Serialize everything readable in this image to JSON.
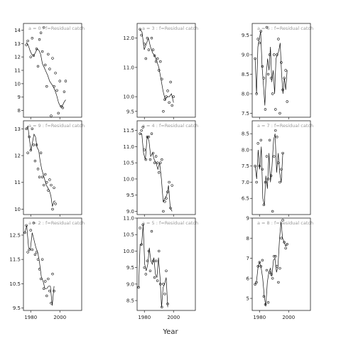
{
  "chart_data": {
    "type": "line",
    "xlabel": "Year",
    "ylabel": "",
    "grid": false,
    "xlim": [
      1975,
      2015
    ],
    "x_ticks": [
      1980,
      2000
    ],
    "panels": [
      {
        "title": "a = 0  :  f=Residual catch",
        "ylim": [
          7.5,
          14.5
        ],
        "yticks": [
          8,
          9,
          10,
          11,
          12,
          13,
          14
        ],
        "fitted": [
          13.1,
          12.9,
          12.5,
          12.2,
          12.1,
          12.3,
          12.6,
          12.5,
          12.2,
          11.5,
          11.2,
          10.9,
          10.6,
          10.2,
          10.0,
          9.8,
          9.5,
          9.1,
          8.6,
          8.3,
          8.3,
          8.6,
          8.8
        ],
        "observed": [
          [
            1977,
            12.9
          ],
          [
            1978,
            13.2
          ],
          [
            1980,
            12.0
          ],
          [
            1981,
            13.4
          ],
          [
            1982,
            12.1
          ],
          [
            1984,
            12.6
          ],
          [
            1985,
            11.3
          ],
          [
            1986,
            13.3
          ],
          [
            1987,
            13.8
          ],
          [
            1988,
            12.4
          ],
          [
            1989,
            14.2
          ],
          [
            1990,
            11.4
          ],
          [
            1991,
            9.8
          ],
          [
            1992,
            12.2
          ],
          [
            1993,
            11.1
          ],
          [
            1994,
            7.6
          ],
          [
            1995,
            11.9
          ],
          [
            1996,
            9.8
          ],
          [
            1997,
            10.8
          ],
          [
            1998,
            9.5
          ],
          [
            1999,
            7.8
          ],
          [
            2000,
            10.2
          ],
          [
            2001,
            8.3
          ],
          [
            2002,
            8.2
          ],
          [
            2003,
            9.4
          ],
          [
            2004,
            10.2
          ]
        ]
      },
      {
        "title": "a = 3  :  f=Residual catch",
        "ylim": [
          9.3,
          12.5
        ],
        "yticks": [
          9.5,
          10.0,
          11.0,
          12.0
        ],
        "fitted": [
          12.3,
          12.2,
          11.6,
          11.8,
          12.0,
          11.7,
          11.5,
          11.4,
          11.2,
          11.0,
          10.6,
          10.2,
          9.9,
          10.0,
          10.0,
          10.1,
          9.8
        ],
        "observed": [
          [
            1977,
            12.3
          ],
          [
            1978,
            12.1
          ],
          [
            1980,
            11.8
          ],
          [
            1981,
            11.3
          ],
          [
            1982,
            12.0
          ],
          [
            1983,
            11.6
          ],
          [
            1985,
            12.0
          ],
          [
            1986,
            11.6
          ],
          [
            1987,
            11.4
          ],
          [
            1988,
            11.2
          ],
          [
            1989,
            11.3
          ],
          [
            1990,
            10.9
          ],
          [
            1991,
            11.2
          ],
          [
            1992,
            10.6
          ],
          [
            1993,
            9.5
          ],
          [
            1994,
            9.9
          ],
          [
            1995,
            10.0
          ],
          [
            1996,
            10.2
          ],
          [
            1997,
            9.8
          ],
          [
            1998,
            10.5
          ],
          [
            1999,
            9.7
          ],
          [
            2000,
            10.0
          ]
        ]
      },
      {
        "title": "a = 6  :  f=Residual catch",
        "ylim": [
          7.4,
          9.8
        ],
        "yticks": [
          7.5,
          8.0,
          8.5,
          9.0,
          9.5
        ],
        "fitted": [
          8.9,
          8.0,
          9.2,
          9.4,
          9.6,
          8.7,
          8.2,
          7.7,
          8.5,
          8.9,
          8.6,
          9.2,
          8.3,
          8.6,
          8.0,
          8.9,
          9.0,
          9.1,
          9.3,
          8.5,
          8.0,
          8.4,
          8.1,
          8.6
        ],
        "observed": [
          [
            1977,
            8.9
          ],
          [
            1978,
            8.0
          ],
          [
            1979,
            9.4
          ],
          [
            1980,
            9.3
          ],
          [
            1981,
            9.6
          ],
          [
            1982,
            8.7
          ],
          [
            1983,
            8.4
          ],
          [
            1984,
            7.6
          ],
          [
            1985,
            9.7
          ],
          [
            1986,
            8.5
          ],
          [
            1987,
            9.0
          ],
          [
            1988,
            8.4
          ],
          [
            1989,
            8.0
          ],
          [
            1990,
            9.0
          ],
          [
            1991,
            7.6
          ],
          [
            1992,
            9.0
          ],
          [
            1993,
            9.4
          ],
          [
            1994,
            7.5
          ],
          [
            1995,
            8.8
          ],
          [
            1996,
            8.1
          ],
          [
            1997,
            8.4
          ],
          [
            1998,
            8.6
          ],
          [
            1999,
            7.8
          ]
        ]
      },
      {
        "title": "a = 9  :  f=Residual catch",
        "ylim": [
          9.8,
          13.3
        ],
        "yticks": [
          10.0,
          11.0,
          12.0,
          13.0
        ],
        "fitted": [
          13.0,
          13.1,
          12.6,
          12.2,
          12.5,
          12.8,
          12.7,
          12.3,
          12.2,
          11.8,
          11.5,
          11.3,
          11.1,
          10.9,
          10.8,
          10.7,
          10.5,
          10.1,
          10.3,
          10.3
        ],
        "observed": [
          [
            1977,
            13.0
          ],
          [
            1978,
            12.1
          ],
          [
            1979,
            12.7
          ],
          [
            1980,
            12.2
          ],
          [
            1981,
            13.0
          ],
          [
            1982,
            12.4
          ],
          [
            1983,
            11.8
          ],
          [
            1984,
            12.4
          ],
          [
            1985,
            11.5
          ],
          [
            1986,
            11.2
          ],
          [
            1987,
            12.1
          ],
          [
            1988,
            11.2
          ],
          [
            1989,
            10.9
          ],
          [
            1990,
            11.3
          ],
          [
            1991,
            11.0
          ],
          [
            1992,
            10.7
          ],
          [
            1993,
            11.1
          ],
          [
            1994,
            10.9
          ],
          [
            1995,
            10.0
          ],
          [
            1996,
            10.8
          ],
          [
            1997,
            10.2
          ]
        ]
      },
      {
        "title": "a = 4  :  f=Residual catch",
        "ylim": [
          8.9,
          11.8
        ],
        "yticks": [
          9.0,
          9.5,
          10.0,
          10.5,
          11.0,
          11.5
        ],
        "fitted": [
          11.4,
          11.4,
          10.8,
          10.6,
          11.3,
          11.2,
          10.7,
          10.8,
          10.6,
          10.5,
          10.3,
          10.5,
          10.0,
          9.3,
          9.4,
          9.5,
          9.8,
          9.1,
          9.0
        ],
        "observed": [
          [
            1977,
            11.4
          ],
          [
            1978,
            11.5
          ],
          [
            1979,
            11.6
          ],
          [
            1980,
            10.9
          ],
          [
            1981,
            10.6
          ],
          [
            1982,
            11.3
          ],
          [
            1983,
            11.3
          ],
          [
            1984,
            10.6
          ],
          [
            1985,
            11.4
          ],
          [
            1986,
            10.8
          ],
          [
            1987,
            10.5
          ],
          [
            1988,
            10.7
          ],
          [
            1989,
            10.5
          ],
          [
            1990,
            10.2
          ],
          [
            1991,
            10.5
          ],
          [
            1992,
            10.6
          ],
          [
            1993,
            9.0
          ],
          [
            1994,
            9.3
          ],
          [
            1995,
            9.4
          ],
          [
            1996,
            9.6
          ],
          [
            1997,
            9.9
          ],
          [
            1998,
            9.1
          ],
          [
            1999,
            9.8
          ]
        ]
      },
      {
        "title": "a = 7  :  f=Residual catch",
        "ylim": [
          6.0,
          8.9
        ],
        "yticks": [
          6.5,
          7.0,
          7.5,
          8.0,
          8.5
        ],
        "fitted": [
          7.5,
          7.1,
          8.0,
          7.4,
          8.1,
          6.5,
          6.3,
          7.2,
          6.8,
          7.9,
          7.0,
          7.5,
          8.3,
          8.5,
          7.3,
          7.9,
          7.3,
          7.0,
          7.9
        ],
        "observed": [
          [
            1977,
            7.5
          ],
          [
            1978,
            7.0
          ],
          [
            1979,
            8.2
          ],
          [
            1980,
            7.5
          ],
          [
            1981,
            8.3
          ],
          [
            1982,
            7.4
          ],
          [
            1983,
            6.3
          ],
          [
            1984,
            7.0
          ],
          [
            1985,
            7.8
          ],
          [
            1986,
            7.1
          ],
          [
            1987,
            8.3
          ],
          [
            1988,
            7.2
          ],
          [
            1989,
            6.1
          ],
          [
            1990,
            7.8
          ],
          [
            1991,
            8.6
          ],
          [
            1992,
            8.4
          ],
          [
            1993,
            7.6
          ],
          [
            1994,
            7.0
          ],
          [
            1995,
            7.4
          ],
          [
            1996,
            7.9
          ]
        ]
      },
      {
        "title": "a = 2  :  f=Residual catch",
        "ylim": [
          9.4,
          13.2
        ],
        "yticks": [
          9.5,
          10.5,
          11.5,
          12.5
        ],
        "fitted": [
          12.6,
          12.9,
          12.0,
          11.9,
          12.6,
          12.3,
          12.0,
          11.8,
          11.4,
          10.8,
          10.6,
          10.3,
          10.3,
          10.4,
          10.4,
          9.6,
          10.4
        ],
        "observed": [
          [
            1976,
            12.6
          ],
          [
            1977,
            12.9
          ],
          [
            1978,
            11.8
          ],
          [
            1979,
            11.9
          ],
          [
            1980,
            12.7
          ],
          [
            1981,
            11.9
          ],
          [
            1982,
            13.0
          ],
          [
            1983,
            11.7
          ],
          [
            1984,
            11.8
          ],
          [
            1985,
            11.5
          ],
          [
            1986,
            11.1
          ],
          [
            1987,
            10.7
          ],
          [
            1988,
            11.5
          ],
          [
            1989,
            10.3
          ],
          [
            1990,
            10.6
          ],
          [
            1991,
            10.0
          ],
          [
            1992,
            10.7
          ],
          [
            1993,
            10.2
          ],
          [
            1994,
            9.7
          ],
          [
            1995,
            10.9
          ],
          [
            1996,
            10.2
          ]
        ]
      },
      {
        "title": "a = 5  :  f=Residual catch",
        "ylim": [
          8.2,
          11.0
        ],
        "yticks": [
          8.5,
          9.0,
          9.5,
          10.0,
          10.5,
          11.0
        ],
        "fitted": [
          8.9,
          10.2,
          10.2,
          10.8,
          9.6,
          9.4,
          9.6,
          10.1,
          9.7,
          9.6,
          9.8,
          9.3,
          9.2,
          9.8,
          9.2,
          8.3,
          8.9,
          9.0,
          9.2,
          8.3
        ],
        "observed": [
          [
            1976,
            8.9
          ],
          [
            1977,
            10.7
          ],
          [
            1978,
            10.2
          ],
          [
            1979,
            10.8
          ],
          [
            1980,
            9.5
          ],
          [
            1981,
            9.3
          ],
          [
            1982,
            9.7
          ],
          [
            1983,
            10.0
          ],
          [
            1984,
            9.4
          ],
          [
            1985,
            10.6
          ],
          [
            1986,
            9.7
          ],
          [
            1987,
            9.2
          ],
          [
            1988,
            9.7
          ],
          [
            1989,
            9.1
          ],
          [
            1990,
            10.0
          ],
          [
            1991,
            9.0
          ],
          [
            1992,
            8.3
          ],
          [
            1993,
            9.0
          ],
          [
            1994,
            8.7
          ],
          [
            1995,
            9.4
          ],
          [
            1996,
            8.4
          ]
        ]
      },
      {
        "title": "a = 8  :  f=Residual catch",
        "ylim": [
          4.4,
          9.0
        ],
        "yticks": [
          5,
          6,
          7,
          8,
          9
        ],
        "fitted": [
          5.7,
          5.9,
          6.6,
          6.8,
          6.5,
          6.0,
          5.1,
          4.6,
          5.8,
          6.3,
          6.5,
          6.1,
          6.9,
          7.0,
          6.3,
          6.6,
          8.0,
          8.8,
          8.0,
          7.8,
          7.6,
          7.7
        ],
        "observed": [
          [
            1977,
            5.7
          ],
          [
            1978,
            5.8
          ],
          [
            1979,
            6.6
          ],
          [
            1980,
            6.8
          ],
          [
            1981,
            6.6
          ],
          [
            1982,
            6.9
          ],
          [
            1983,
            5.1
          ],
          [
            1984,
            4.7
          ],
          [
            1985,
            6.4
          ],
          [
            1986,
            4.8
          ],
          [
            1987,
            6.3
          ],
          [
            1988,
            6.2
          ],
          [
            1989,
            6.0
          ],
          [
            1990,
            7.1
          ],
          [
            1991,
            7.1
          ],
          [
            1992,
            6.6
          ],
          [
            1993,
            5.8
          ],
          [
            1994,
            6.5
          ],
          [
            1995,
            8.0
          ],
          [
            1996,
            8.9
          ],
          [
            1997,
            7.8
          ],
          [
            1998,
            7.5
          ],
          [
            1999,
            7.7
          ]
        ]
      }
    ]
  }
}
